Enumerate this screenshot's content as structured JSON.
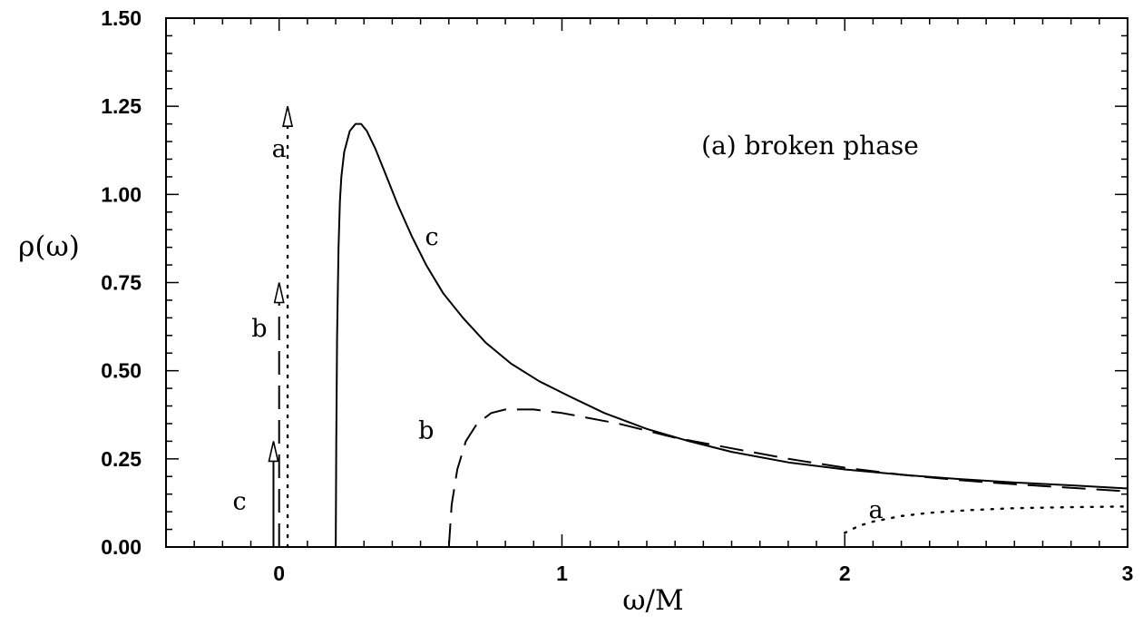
{
  "chart_data": {
    "type": "line",
    "annotation": "(a) broken phase",
    "xlabel": "ω/M",
    "ylabel": "ρ(ω)",
    "xlim": [
      -0.4,
      3.0
    ],
    "ylim": [
      0.0,
      1.5
    ],
    "x_ticks": [
      {
        "value": 0,
        "label": "0"
      },
      {
        "value": 1,
        "label": "1"
      },
      {
        "value": 2,
        "label": "2"
      },
      {
        "value": 3,
        "label": "3"
      }
    ],
    "y_ticks": [
      {
        "value": 0.0,
        "label": "0.00"
      },
      {
        "value": 0.25,
        "label": "0.25"
      },
      {
        "value": 0.5,
        "label": "0.50"
      },
      {
        "value": 0.75,
        "label": "0.75"
      },
      {
        "value": 1.0,
        "label": "1.00"
      },
      {
        "value": 1.25,
        "label": "1.25"
      },
      {
        "value": 1.5,
        "label": "1.50"
      }
    ],
    "grid": false,
    "series": [
      {
        "name": "a",
        "style": "dotted",
        "x": [
          2.0,
          2.05,
          2.1,
          2.2,
          2.3,
          2.45,
          2.6,
          2.8,
          3.0
        ],
        "y": [
          0.04,
          0.06,
          0.072,
          0.088,
          0.097,
          0.105,
          0.11,
          0.113,
          0.115
        ],
        "delta": {
          "x": 0.03,
          "height": 1.25
        }
      },
      {
        "name": "b",
        "style": "dashed",
        "x": [
          0.6,
          0.61,
          0.63,
          0.66,
          0.7,
          0.75,
          0.8,
          0.9,
          1.0,
          1.2,
          1.4,
          1.6,
          1.8,
          2.0,
          2.2,
          2.4,
          2.6,
          2.8,
          3.0
        ],
        "y": [
          0.0,
          0.12,
          0.22,
          0.3,
          0.35,
          0.38,
          0.39,
          0.39,
          0.38,
          0.35,
          0.31,
          0.28,
          0.25,
          0.225,
          0.205,
          0.19,
          0.178,
          0.168,
          0.158
        ],
        "delta": {
          "x": 0.0,
          "height": 0.75
        }
      },
      {
        "name": "c",
        "style": "solid",
        "x": [
          0.2,
          0.202,
          0.205,
          0.21,
          0.215,
          0.22,
          0.23,
          0.25,
          0.27,
          0.29,
          0.31,
          0.34,
          0.38,
          0.42,
          0.47,
          0.52,
          0.58,
          0.65,
          0.73,
          0.82,
          0.92,
          1.02,
          1.15,
          1.3,
          1.45,
          1.6,
          1.8,
          2.0,
          2.2,
          2.4,
          2.6,
          2.8,
          3.0
        ],
        "y": [
          0.0,
          0.3,
          0.6,
          0.85,
          0.98,
          1.05,
          1.12,
          1.18,
          1.2,
          1.2,
          1.18,
          1.13,
          1.05,
          0.97,
          0.88,
          0.8,
          0.72,
          0.65,
          0.58,
          0.52,
          0.47,
          0.43,
          0.38,
          0.335,
          0.3,
          0.27,
          0.24,
          0.22,
          0.205,
          0.193,
          0.183,
          0.175,
          0.166
        ],
        "delta": {
          "x": -0.02,
          "height": 0.3
        }
      }
    ],
    "curve_labels": [
      {
        "text": "a",
        "x": 0.0,
        "y": 1.13
      },
      {
        "text": "b",
        "x": -0.07,
        "y": 0.62
      },
      {
        "text": "c",
        "x": -0.14,
        "y": 0.13
      },
      {
        "text": "c",
        "x": 0.54,
        "y": 0.88
      },
      {
        "text": "b",
        "x": 0.52,
        "y": 0.33
      },
      {
        "text": "a",
        "x": 2.11,
        "y": 0.105
      }
    ]
  }
}
